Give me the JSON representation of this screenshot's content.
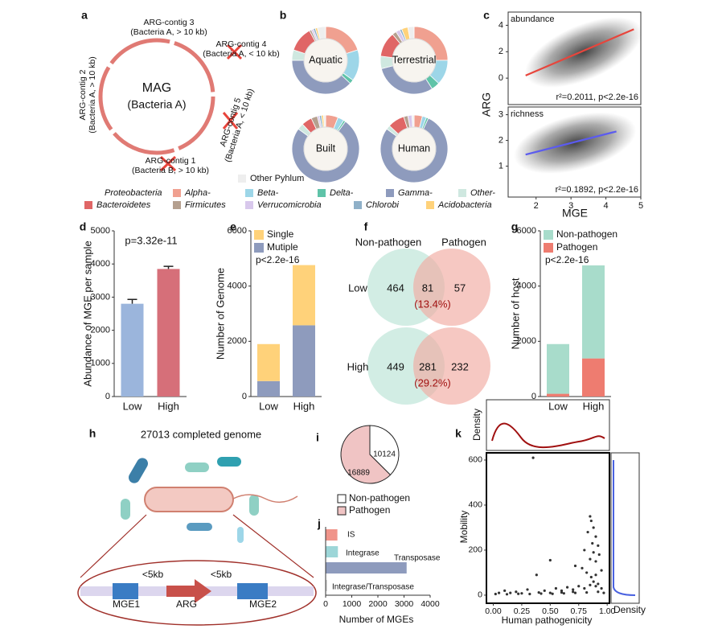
{
  "panel_labels": [
    "a",
    "b",
    "c",
    "d",
    "e",
    "f",
    "g",
    "h",
    "i",
    "j",
    "k"
  ],
  "panel_a": {
    "center": [
      "MAG",
      "(Bacteria A)"
    ],
    "contigs": [
      {
        "name": "ARG-contig 3",
        "detail": "(Bacteria A, > 10 kb)"
      },
      {
        "name": "ARG-contig 4",
        "detail": "(Bacteria A, < 10 kb)"
      },
      {
        "name": "ARG-contig 5",
        "detail": "(Bacteria A, < 10 kb)"
      },
      {
        "name": "ARG-contig 1",
        "detail": "(Bacteria B, > 10 kb)"
      },
      {
        "name": "ARG-contig 2",
        "detail": "(Bacteria A, > 10 kb)"
      }
    ]
  },
  "panel_f": {
    "sets": [
      "Non-pathogen",
      "Pathogen"
    ],
    "groups": [
      {
        "name": "Low",
        "only_a": 464,
        "both": 81,
        "only_b": 57,
        "share": "(13.4%)"
      },
      {
        "name": "High",
        "only_a": 449,
        "both": 281,
        "only_b": 232,
        "share": "(29.2%)"
      }
    ]
  },
  "panel_h": {
    "title": "27013 completed genome",
    "genes": [
      "MGE1",
      "ARG",
      "MGE2"
    ],
    "gaps": [
      "<5kb",
      "<5kb"
    ]
  },
  "chart_data": [
    {
      "type": "donut",
      "group_label": "Proteobacteria",
      "categories": [
        "Alpha-",
        "Beta-",
        "Delta-",
        "Gamma-",
        "Other-",
        "Bacteroidetes",
        "Firmicutes",
        "Verrucomicrobia",
        "Chlorobi",
        "Acidobacteria",
        "Other Pyhlum"
      ],
      "colors": [
        "#f0a090",
        "#9dd6e8",
        "#5fc3a8",
        "#8e9bbd",
        "#cfe8e0",
        "#e06666",
        "#b5a08f",
        "#d8c8ec",
        "#8fb0c8",
        "#ffd27a",
        "#eeeeee"
      ],
      "series": [
        {
          "name": "Aquatic",
          "values": [
            20,
            15,
            2,
            38,
            5,
            12,
            1,
            1,
            1,
            1,
            4
          ]
        },
        {
          "name": "Terrestrial",
          "values": [
            25,
            12,
            4,
            30,
            6,
            12,
            2,
            2,
            1,
            3,
            3
          ]
        },
        {
          "name": "Built",
          "values": [
            6,
            3,
            1,
            75,
            3,
            5,
            3,
            1,
            1,
            1,
            1
          ]
        },
        {
          "name": "Human",
          "values": [
            4,
            2,
            1,
            78,
            2,
            8,
            2,
            2,
            0,
            0,
            1
          ]
        }
      ]
    },
    {
      "type": "regression",
      "title": "abundance",
      "annotation": "r²=0.2011, p<2.2e-16",
      "color": "#e8453c",
      "line": {
        "x": [
          1.7,
          4.8
        ],
        "y": [
          0.2,
          3.7
        ]
      },
      "xlim": [
        1.2,
        5
      ],
      "ylim": [
        -2,
        5
      ],
      "yticks": [
        0,
        2,
        4
      ],
      "ylabel": "ARG"
    },
    {
      "type": "regression",
      "title": "richness",
      "annotation": "r²=0.1892, p<2.2e-16",
      "color": "#5b5bef",
      "line": {
        "x": [
          1.7,
          4.3
        ],
        "y": [
          1.45,
          2.35
        ]
      },
      "xlim": [
        1.2,
        5
      ],
      "xticks": [
        2,
        3,
        4,
        5
      ],
      "ylim": [
        -0.2,
        3.3
      ],
      "yticks": [
        1,
        2,
        3
      ],
      "xlabel": "MGE"
    },
    {
      "type": "bar",
      "categories": [
        "Low",
        "High"
      ],
      "values": [
        2800,
        3850
      ],
      "errors": [
        130,
        80
      ],
      "colors": [
        "#9bb5dc",
        "#d66f79"
      ],
      "ylim": [
        0,
        5000
      ],
      "yticks": [
        0,
        1000,
        2000,
        3000,
        4000,
        5000
      ],
      "ylabel": "Abundance of MGE per sample",
      "annotation": "p=3.32e-11"
    },
    {
      "type": "stacked_bar",
      "categories": [
        "Low",
        "High"
      ],
      "series": [
        {
          "name": "Mutiple",
          "color": "#8e9bbd",
          "values": [
            560,
            2580
          ]
        },
        {
          "name": "Single",
          "color": "#ffd27a",
          "values": [
            1340,
            2180
          ]
        }
      ],
      "ylim": [
        0,
        6000
      ],
      "yticks": [
        0,
        2000,
        4000,
        6000
      ],
      "ylabel": "Number of Genome",
      "annotation": "p<2.2e-16"
    },
    {
      "type": "stacked_bar",
      "categories": [
        "Low",
        "High"
      ],
      "series": [
        {
          "name": "Pathogen",
          "color": "#ee7c70",
          "values": [
            100,
            1380
          ]
        },
        {
          "name": "Non-pathogen",
          "color": "#a8dccb",
          "values": [
            1800,
            3370
          ]
        }
      ],
      "ylim": [
        0,
        6000
      ],
      "yticks": [
        0,
        2000,
        4000,
        6000
      ],
      "ylabel": "Number of host",
      "annotation": "p<2.2e-16"
    },
    {
      "type": "pie",
      "categories": [
        "Non-pathogen",
        "Pathogen"
      ],
      "values": [
        10124,
        16889
      ],
      "colors": [
        "#ffffff",
        "#f0c4c4"
      ]
    },
    {
      "type": "hbar",
      "categories": [
        "IS",
        "Integrase",
        "Transposase",
        "Integrase/Transposase"
      ],
      "values": [
        450,
        470,
        3100,
        60
      ],
      "colors": [
        "#f0948a",
        "#9dd6d8",
        "#8e9bbd",
        "#d9d9d9"
      ],
      "xlim": [
        0,
        4000
      ],
      "xticks": [
        0,
        1000,
        2000,
        3000,
        4000
      ],
      "xlabel": "Number of MGEs"
    },
    {
      "type": "scatter",
      "x": [
        0.35,
        0.5,
        0.38,
        0.72,
        0.85,
        0.86,
        0.88,
        0.83,
        0.9,
        0.87,
        0.92,
        0.8,
        0.88,
        0.93,
        0.85,
        0.9,
        0.78,
        0.95,
        0.82,
        0.9,
        0.86,
        0.88,
        0.92,
        0.1,
        0.2,
        0.3,
        0.45,
        0.55,
        0.6,
        0.65,
        0.7,
        0.75,
        0.8,
        0.85,
        0.9,
        0.95,
        0.05,
        0.15,
        0.25,
        0.4,
        0.5,
        0.6,
        0.7,
        0.02,
        0.12,
        0.22,
        0.32,
        0.42,
        0.52,
        0.62,
        0.72,
        0.82,
        0.92,
        0.97
      ],
      "y": [
        610,
        155,
        90,
        130,
        350,
        330,
        300,
        280,
        260,
        230,
        220,
        200,
        190,
        180,
        160,
        150,
        120,
        110,
        100,
        90,
        80,
        60,
        50,
        20,
        15,
        25,
        20,
        30,
        20,
        35,
        25,
        40,
        30,
        45,
        40,
        30,
        10,
        10,
        8,
        12,
        10,
        12,
        15,
        5,
        4,
        6,
        5,
        7,
        6,
        8,
        10,
        12,
        15,
        10
      ],
      "xlim": [
        -0.06,
        1.02
      ],
      "xticks": [
        {
          "value": 0,
          "label": "0.00"
        },
        {
          "value": 0.25,
          "label": "0.25"
        },
        {
          "value": 0.5,
          "label": "0.50"
        },
        {
          "value": 0.75,
          "label": "0.75"
        },
        {
          "value": 1,
          "label": "1.00"
        }
      ],
      "ylim": [
        -36,
        632
      ],
      "yticks": [
        0,
        200,
        400,
        600
      ],
      "xlabel": "Human pathogenicity",
      "ylabel": "Mobility",
      "density_label": "Density"
    }
  ]
}
